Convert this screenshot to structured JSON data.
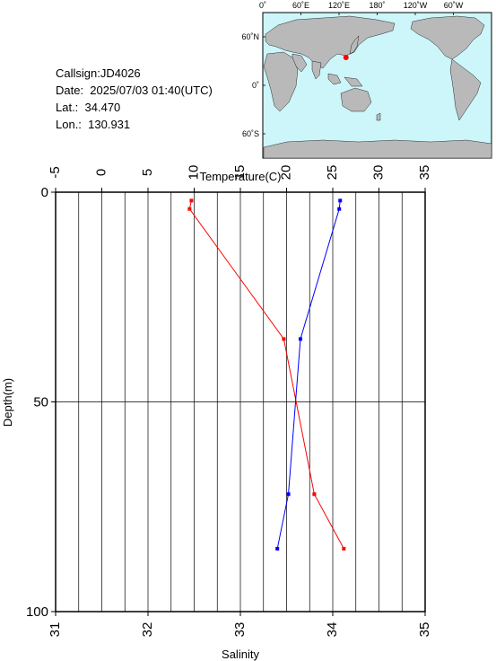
{
  "info": {
    "callsign": "Callsign:JD4026",
    "date": "Date:  2025/07/03 01:40(UTC)",
    "lat": "Lat.:  34.470",
    "lon": "Lon.:  130.931"
  },
  "map": {
    "top_labels": [
      "0˚",
      "60˚E",
      "120˚E",
      "180˚",
      "120˚W",
      "60˚W"
    ],
    "left_labels": [
      "60˚N",
      "0˚",
      "60˚S"
    ],
    "ocean_color": "#ccf6fa",
    "land_color": "#b9b9b9",
    "station": {
      "lat": 34.47,
      "lon": 130.931,
      "color": "#ff0000"
    }
  },
  "chart_data": {
    "type": "line",
    "top_axis": {
      "label": "Temperature(C)",
      "range": [
        -5,
        35
      ],
      "ticks": [
        -5,
        0,
        5,
        10,
        15,
        20,
        25,
        30,
        35
      ],
      "tick_labels": [
        "-5",
        "0",
        "5",
        "10",
        "15",
        "20",
        "25",
        "30",
        "35"
      ]
    },
    "bottom_axis": {
      "label": "Salinity",
      "range": [
        31,
        35
      ],
      "ticks": [
        31,
        32,
        33,
        34,
        35
      ],
      "tick_labels": [
        "31",
        "32",
        "33",
        "34",
        "35"
      ]
    },
    "y_axis": {
      "label": "Depth(m)",
      "range": [
        0,
        100
      ],
      "inverted": true,
      "ticks": [
        0,
        50,
        100
      ],
      "tick_labels": [
        "0",
        "50",
        "100"
      ]
    },
    "grid": true,
    "series": [
      {
        "variable": "temperature",
        "axis": "top",
        "color": "#ff0000",
        "points": [
          {
            "value": 9.7,
            "depth": 2
          },
          {
            "value": 9.5,
            "depth": 4
          },
          {
            "value": 19.7,
            "depth": 35
          },
          {
            "value": 23.0,
            "depth": 72
          },
          {
            "value": 26.2,
            "depth": 85
          }
        ]
      },
      {
        "variable": "salinity",
        "axis": "bottom",
        "color": "#0000ff",
        "points": [
          {
            "value": 34.08,
            "depth": 2
          },
          {
            "value": 34.07,
            "depth": 4
          },
          {
            "value": 33.65,
            "depth": 35
          },
          {
            "value": 33.52,
            "depth": 72
          },
          {
            "value": 33.4,
            "depth": 85
          }
        ]
      }
    ]
  }
}
